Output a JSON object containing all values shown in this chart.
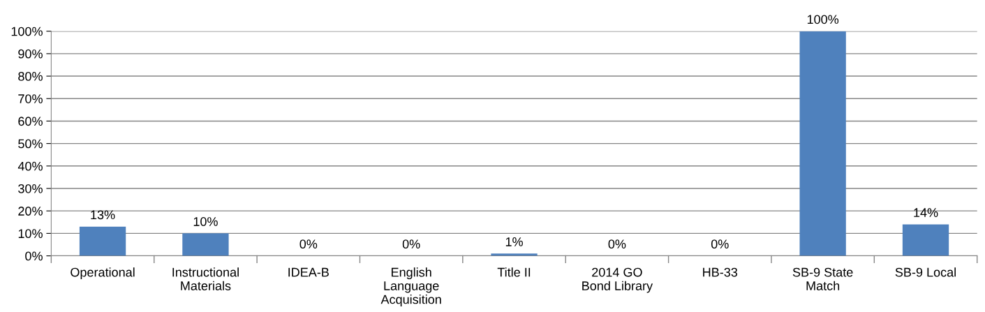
{
  "chart_data": {
    "type": "bar",
    "categories": [
      "Operational",
      "Instructional\nMaterials",
      "IDEA-B",
      "English\nLanguage\nAcquisition",
      "Title II",
      "2014 GO\nBond Library",
      "HB-33",
      "SB-9 State\nMatch",
      "SB-9 Local"
    ],
    "values": [
      13,
      10,
      0,
      0,
      1,
      0,
      0,
      100,
      14
    ],
    "value_labels": [
      "13%",
      "10%",
      "0%",
      "0%",
      "1%",
      "0%",
      "0%",
      "100%",
      "14%"
    ],
    "color": "#4f81bd",
    "ylim": [
      0,
      100
    ],
    "yticks": [
      {
        "value": 0,
        "label": "0%"
      },
      {
        "value": 10,
        "label": "10%"
      },
      {
        "value": 20,
        "label": "20%"
      },
      {
        "value": 30,
        "label": "30%"
      },
      {
        "value": 40,
        "label": "40%"
      },
      {
        "value": 50,
        "label": "50%"
      },
      {
        "value": 60,
        "label": "60%"
      },
      {
        "value": 70,
        "label": "70%"
      },
      {
        "value": 80,
        "label": "80%"
      },
      {
        "value": 90,
        "label": "90%"
      },
      {
        "value": 100,
        "label": "100%"
      }
    ],
    "grid": "y"
  }
}
